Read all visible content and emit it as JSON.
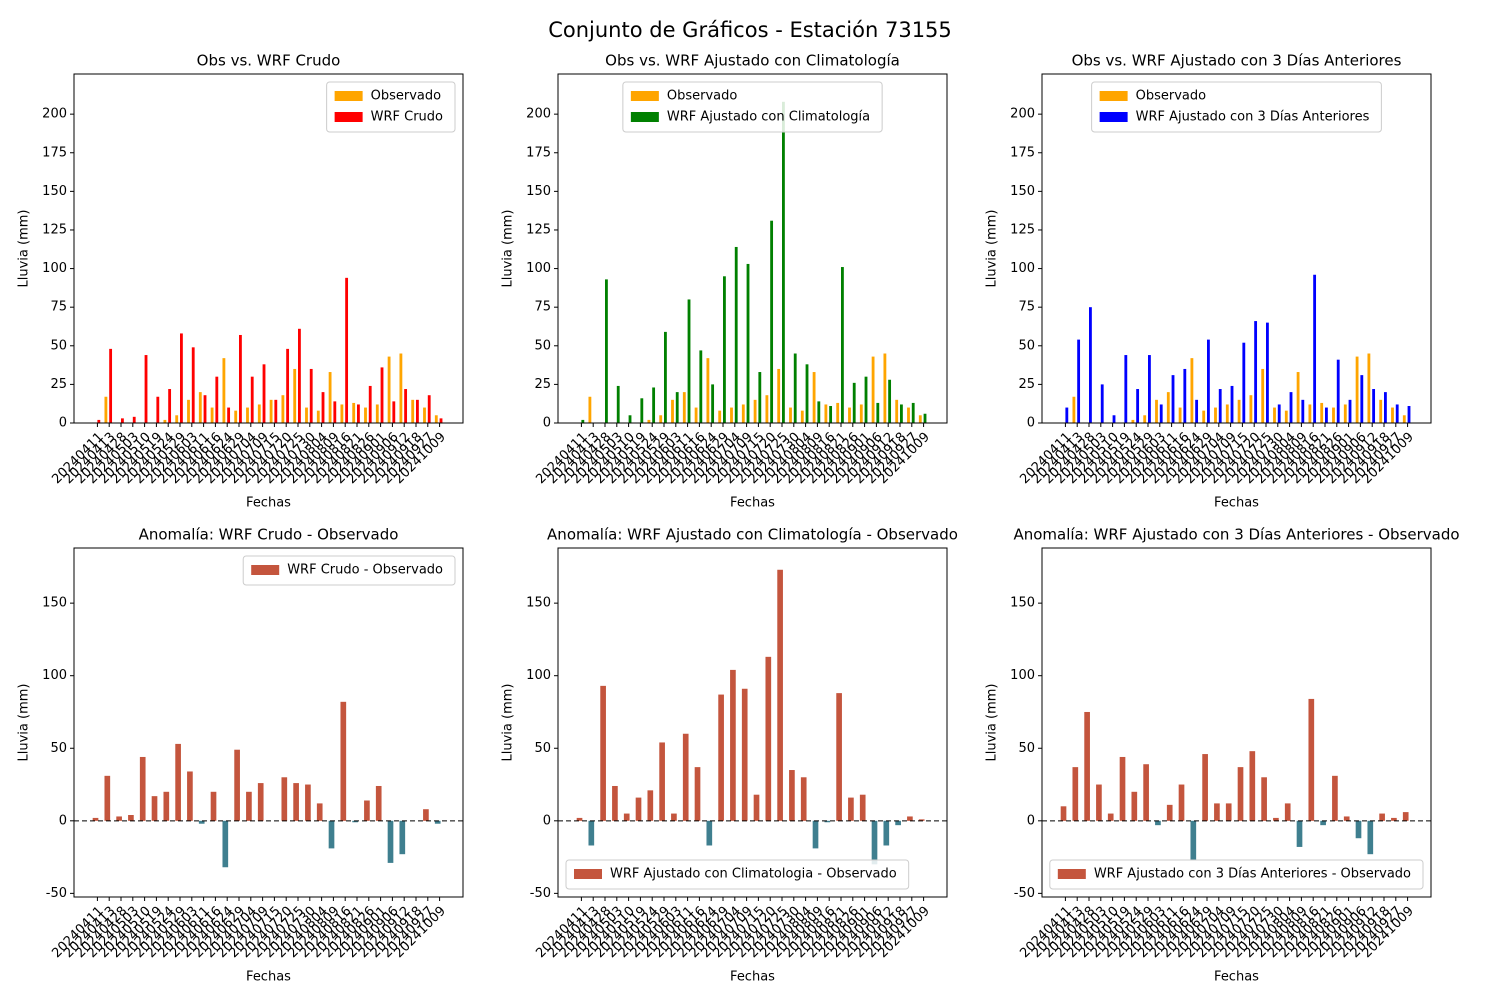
{
  "chart_data": [
    {
      "type": "bar",
      "title": "Obs vs. WRF Crudo",
      "xlabel": "Fechas",
      "ylabel": "Lluvia (mm)",
      "legend": "upper right",
      "categories": [
        "20240411",
        "20240413",
        "20240428",
        "20240503",
        "20240510",
        "20240519",
        "20240524",
        "20240529",
        "20240603",
        "20240611",
        "20240616",
        "20240624",
        "20240629",
        "20240704",
        "20240709",
        "20240715",
        "20240720",
        "20240725",
        "20240730",
        "20240804",
        "20240809",
        "20240816",
        "20240821",
        "20240826",
        "20240901",
        "20240906",
        "20240912",
        "20240918",
        "20240927",
        "20241009"
      ],
      "series": [
        {
          "name": "Observado",
          "color": "#ffa500",
          "values": [
            0,
            17,
            0,
            0,
            0,
            0,
            2,
            5,
            15,
            20,
            10,
            42,
            8,
            10,
            12,
            15,
            18,
            35,
            10,
            8,
            33,
            12,
            13,
            10,
            12,
            43,
            45,
            15,
            10,
            5
          ]
        },
        {
          "name": "WRF Crudo",
          "color": "#ff0000",
          "values": [
            2,
            48,
            3,
            4,
            44,
            17,
            22,
            58,
            49,
            18,
            30,
            10,
            57,
            30,
            38,
            15,
            48,
            61,
            35,
            20,
            14,
            94,
            12,
            24,
            36,
            14,
            22,
            15,
            18,
            3
          ]
        }
      ],
      "ylim": [
        0,
        226
      ],
      "yticks": [
        0,
        25,
        50,
        75,
        100,
        125,
        150,
        175,
        200
      ]
    },
    {
      "type": "bar",
      "title": "Obs vs. WRF Ajustado con Climatología",
      "xlabel": "Fechas",
      "ylabel": "Lluvia (mm)",
      "legend": "upper center",
      "categories": [
        "20240411",
        "20240413",
        "20240428",
        "20240503",
        "20240510",
        "20240519",
        "20240524",
        "20240529",
        "20240603",
        "20240611",
        "20240616",
        "20240624",
        "20240629",
        "20240704",
        "20240709",
        "20240715",
        "20240720",
        "20240725",
        "20240730",
        "20240804",
        "20240809",
        "20240816",
        "20240821",
        "20240826",
        "20240901",
        "20240906",
        "20240912",
        "20240918",
        "20240927",
        "20241009"
      ],
      "series": [
        {
          "name": "Observado",
          "color": "#ffa500",
          "values": [
            0,
            17,
            0,
            0,
            0,
            0,
            2,
            5,
            15,
            20,
            10,
            42,
            8,
            10,
            12,
            15,
            18,
            35,
            10,
            8,
            33,
            12,
            13,
            10,
            12,
            43,
            45,
            15,
            10,
            5
          ]
        },
        {
          "name": "WRF Ajustado con Climatología",
          "color": "#008000",
          "values": [
            2,
            0,
            93,
            24,
            5,
            16,
            23,
            59,
            20,
            80,
            47,
            25,
            95,
            114,
            103,
            33,
            131,
            208,
            45,
            38,
            14,
            11,
            101,
            26,
            30,
            13,
            28,
            12,
            13,
            6
          ]
        }
      ],
      "ylim": [
        0,
        226
      ],
      "yticks": [
        0,
        25,
        50,
        75,
        100,
        125,
        150,
        175,
        200
      ]
    },
    {
      "type": "bar",
      "title": "Obs vs. WRF Ajustado con 3 Días Anteriores",
      "xlabel": "Fechas",
      "ylabel": "Lluvia (mm)",
      "legend": "upper center",
      "categories": [
        "20240411",
        "20240413",
        "20240428",
        "20240503",
        "20240510",
        "20240519",
        "20240524",
        "20240529",
        "20240603",
        "20240611",
        "20240616",
        "20240624",
        "20240629",
        "20240704",
        "20240709",
        "20240715",
        "20240720",
        "20240725",
        "20240730",
        "20240804",
        "20240809",
        "20240816",
        "20240821",
        "20240826",
        "20240901",
        "20240906",
        "20240912",
        "20240918",
        "20240927",
        "20241009"
      ],
      "series": [
        {
          "name": "Observado",
          "color": "#ffa500",
          "values": [
            0,
            17,
            0,
            0,
            0,
            0,
            2,
            5,
            15,
            20,
            10,
            42,
            8,
            10,
            12,
            15,
            18,
            35,
            10,
            8,
            33,
            12,
            13,
            10,
            12,
            43,
            45,
            15,
            10,
            5
          ]
        },
        {
          "name": "WRF Ajustado con 3 Días Anteriores",
          "color": "#0000ff",
          "values": [
            10,
            54,
            75,
            25,
            5,
            44,
            22,
            44,
            12,
            31,
            35,
            15,
            54,
            22,
            24,
            52,
            66,
            65,
            12,
            20,
            15,
            96,
            10,
            41,
            15,
            31,
            22,
            20,
            12,
            11
          ]
        }
      ],
      "ylim": [
        0,
        226
      ],
      "yticks": [
        0,
        25,
        50,
        75,
        100,
        125,
        150,
        175,
        200
      ]
    },
    {
      "type": "bar",
      "title": "Anomalía: WRF Crudo - Observado",
      "xlabel": "Fechas",
      "ylabel": "Lluvia (mm)",
      "legend": "upper right",
      "zero_line": true,
      "categories": [
        "20240411",
        "20240413",
        "20240428",
        "20240503",
        "20240510",
        "20240519",
        "20240524",
        "20240529",
        "20240603",
        "20240611",
        "20240616",
        "20240624",
        "20240629",
        "20240704",
        "20240709",
        "20240715",
        "20240720",
        "20240725",
        "20240730",
        "20240804",
        "20240809",
        "20240816",
        "20240821",
        "20240826",
        "20240901",
        "20240906",
        "20240912",
        "20240918",
        "20240927",
        "20241009"
      ],
      "series": [
        {
          "name": "WRF Crudo - Observado",
          "color": "#c4553d",
          "negative_color": "#3f7f8f",
          "values": [
            2,
            31,
            3,
            4,
            44,
            17,
            20,
            53,
            34,
            -2,
            20,
            -32,
            49,
            20,
            26,
            0,
            30,
            26,
            25,
            12,
            -19,
            82,
            -1,
            14,
            24,
            -29,
            -23,
            0,
            8,
            -2
          ]
        }
      ],
      "ylim": [
        -52.5,
        188
      ],
      "yticks": [
        -50,
        0,
        50,
        100,
        150
      ]
    },
    {
      "type": "bar",
      "title": "Anomalía: WRF Ajustado con Climatología - Observado",
      "xlabel": "Fechas",
      "ylabel": "Lluvia (mm)",
      "legend": "lower left",
      "zero_line": true,
      "categories": [
        "20240411",
        "20240413",
        "20240428",
        "20240503",
        "20240510",
        "20240519",
        "20240524",
        "20240529",
        "20240603",
        "20240611",
        "20240616",
        "20240624",
        "20240629",
        "20240704",
        "20240709",
        "20240715",
        "20240720",
        "20240725",
        "20240730",
        "20240804",
        "20240809",
        "20240816",
        "20240821",
        "20240826",
        "20240901",
        "20240906",
        "20240912",
        "20240918",
        "20240927",
        "20241009"
      ],
      "series": [
        {
          "name": "WRF Ajustado con Climatologia - Observado",
          "color": "#c4553d",
          "negative_color": "#3f7f8f",
          "values": [
            2,
            -17,
            93,
            24,
            5,
            16,
            21,
            54,
            5,
            60,
            37,
            -17,
            87,
            104,
            91,
            18,
            113,
            173,
            35,
            30,
            -19,
            -1,
            88,
            16,
            18,
            -30,
            -17,
            -3,
            3,
            1
          ]
        }
      ],
      "ylim": [
        -52.5,
        188
      ],
      "yticks": [
        -50,
        0,
        50,
        100,
        150
      ]
    },
    {
      "type": "bar",
      "title": "Anomalía: WRF Ajustado con 3 Días Anteriores - Observado",
      "xlabel": "Fechas",
      "ylabel": "Lluvia (mm)",
      "legend": "lower right",
      "zero_line": true,
      "categories": [
        "20240411",
        "20240413",
        "20240428",
        "20240503",
        "20240510",
        "20240519",
        "20240524",
        "20240529",
        "20240603",
        "20240611",
        "20240616",
        "20240624",
        "20240629",
        "20240704",
        "20240709",
        "20240715",
        "20240720",
        "20240725",
        "20240730",
        "20240804",
        "20240809",
        "20240816",
        "20240821",
        "20240826",
        "20240901",
        "20240906",
        "20240912",
        "20240918",
        "20240927",
        "20241009"
      ],
      "series": [
        {
          "name": "WRF Ajustado con 3 Días Anteriores - Observado",
          "color": "#c4553d",
          "negative_color": "#3f7f8f",
          "values": [
            10,
            37,
            75,
            25,
            5,
            44,
            20,
            39,
            -3,
            11,
            25,
            -27,
            46,
            12,
            12,
            37,
            48,
            30,
            2,
            12,
            -18,
            84,
            -3,
            31,
            3,
            -12,
            -23,
            5,
            2,
            6
          ]
        }
      ],
      "ylim": [
        -52.5,
        188
      ],
      "yticks": [
        -50,
        0,
        50,
        100,
        150
      ]
    }
  ],
  "suptitle": "Conjunto de Gráficos - Estación 73155"
}
